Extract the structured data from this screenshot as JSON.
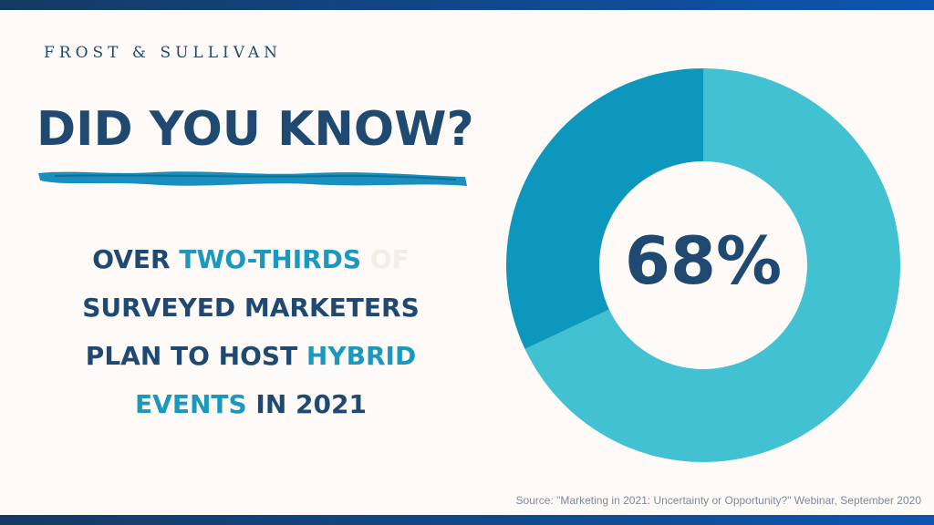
{
  "brand": "FROST & SULLIVAN",
  "headline": "DID YOU KNOW?",
  "statement": {
    "part1": "OVER ",
    "highlight1": "TWO-THIRDS",
    "part2": " OF",
    "line2": "SURVEYED MARKETERS",
    "line3a": "PLAN TO HOST ",
    "highlight2": "HYBRID",
    "highlight3": "EVENTS",
    "line4b": " IN 2021"
  },
  "source": "Source: \"Marketing in 2021: Uncertainty or Opportunity?\" Webinar, September 2020",
  "colors": {
    "navy": "#1f4970",
    "accent": "#1a98bd",
    "primary_slice": "#41c1d1",
    "secondary_slice": "#0e97bd",
    "background": "#fdfaf7"
  },
  "chart_data": {
    "type": "pie",
    "style": "donut",
    "center_label": "68%",
    "slices": [
      {
        "value": 68,
        "color": "#41c1d1"
      },
      {
        "value": 32,
        "color": "#0e97bd"
      }
    ]
  }
}
